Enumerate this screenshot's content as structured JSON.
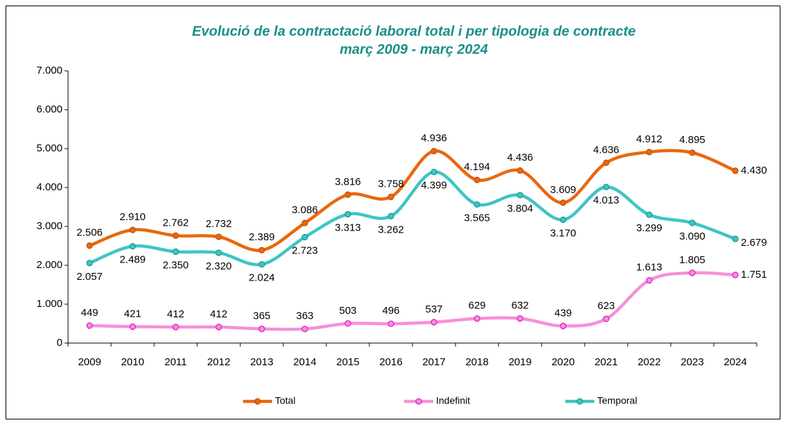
{
  "chart_data": {
    "type": "line",
    "title": "Evolució de la contractació laboral total i per tipologia de contracte",
    "subtitle": "març 2009 - març 2024",
    "categories": [
      "2009",
      "2010",
      "2011",
      "2012",
      "2013",
      "2014",
      "2015",
      "2016",
      "2017",
      "2018",
      "2019",
      "2020",
      "2021",
      "2022",
      "2023",
      "2024"
    ],
    "series": [
      {
        "name": "Total",
        "color": "#e8680e",
        "marker_color": "#c8500a",
        "values": [
          2506,
          2910,
          2762,
          2732,
          2389,
          3086,
          3816,
          3758,
          4936,
          4194,
          4436,
          3609,
          4636,
          4912,
          4895,
          4430
        ],
        "value_labels": [
          "2.506",
          "2.910",
          "2.762",
          "2.732",
          "2.389",
          "3.086",
          "3.816",
          "3.758",
          "4.936",
          "4.194",
          "4.436",
          "3.609",
          "4.636",
          "4.912",
          "4.895",
          "4.430"
        ]
      },
      {
        "name": "Indefinit",
        "color": "#f590d8",
        "marker_color": "#e020c0",
        "values": [
          449,
          421,
          412,
          412,
          365,
          363,
          503,
          496,
          537,
          629,
          632,
          439,
          623,
          1613,
          1805,
          1751
        ],
        "value_labels": [
          "449",
          "421",
          "412",
          "412",
          "365",
          "363",
          "503",
          "496",
          "537",
          "629",
          "632",
          "439",
          "623",
          "1.613",
          "1.805",
          "1.751"
        ]
      },
      {
        "name": "Temporal",
        "color": "#40c4c4",
        "marker_color": "#1a9a9a",
        "values": [
          2057,
          2489,
          2350,
          2320,
          2024,
          2723,
          3313,
          3262,
          4399,
          3565,
          3804,
          3170,
          4013,
          3299,
          3090,
          2679
        ],
        "value_labels": [
          "2.057",
          "2.489",
          "2.350",
          "2.320",
          "2.024",
          "2.723",
          "3.313",
          "3.262",
          "4.399",
          "3.565",
          "3.804",
          "3.170",
          "4.013",
          "3.299",
          "3.090",
          "2.679"
        ]
      }
    ],
    "ylim": [
      0,
      7000
    ],
    "yticks": [
      0,
      {
        "value": 1000,
        "label": "1.000"
      },
      {
        "value": 2000,
        "label": "2.000"
      },
      {
        "value": 3000,
        "label": "3.000"
      },
      {
        "value": 4000,
        "label": "4.000"
      },
      {
        "value": 5000,
        "label": "5.000"
      },
      {
        "value": 6000,
        "label": "6.000"
      },
      {
        "value": 7000,
        "label": "7.000"
      }
    ],
    "legend": "bottom"
  }
}
